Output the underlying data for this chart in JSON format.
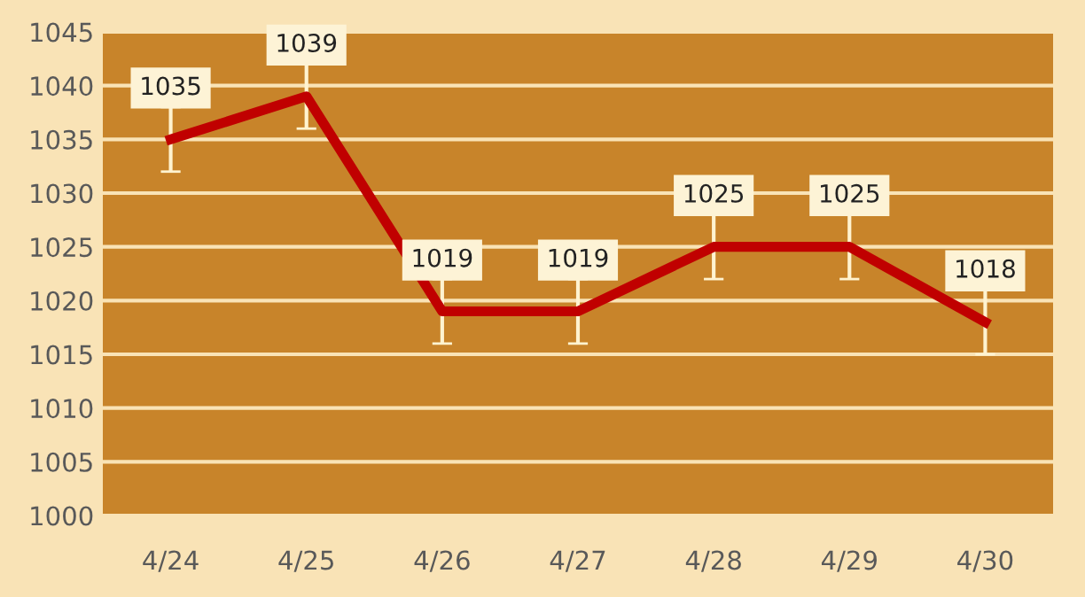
{
  "chart_data": {
    "type": "line",
    "categories": [
      "4/24",
      "4/25",
      "4/26",
      "4/27",
      "4/28",
      "4/29",
      "4/30"
    ],
    "series": [
      {
        "color": "#c00000",
        "values": [
          1035,
          1039,
          1019,
          1019,
          1025,
          1025,
          1018
        ],
        "errors": [
          3,
          3,
          3,
          3,
          3,
          3,
          3
        ]
      }
    ],
    "ylim": [
      1000,
      1045
    ],
    "yticks": [
      1000,
      1005,
      1010,
      1015,
      1020,
      1025,
      1030,
      1035,
      1040,
      1045
    ],
    "grid": "y",
    "data_labels": true,
    "marker": "none",
    "line_style": "solid"
  }
}
